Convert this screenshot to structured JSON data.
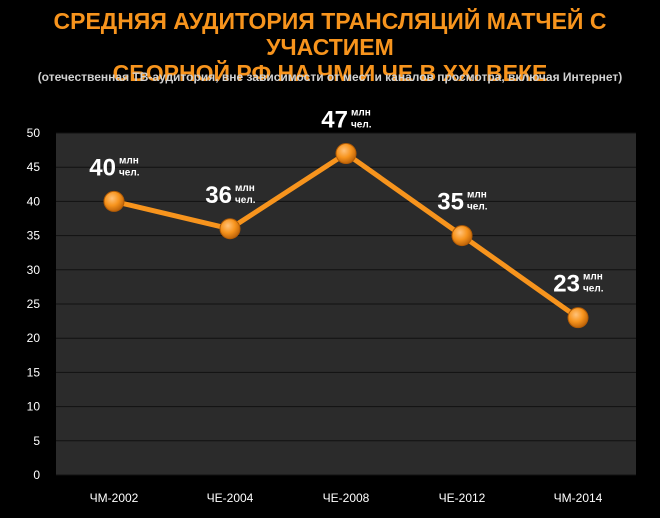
{
  "chart_data": {
    "type": "line",
    "title": "СРЕДНЯЯ АУДИТОРИЯ ТРАНСЛЯЦИЙ МАТЧЕЙ С УЧАСТИЕМ\nСБОРНОЙ РФ НА ЧМ И ЧЕ В XXI ВЕКЕ",
    "subtitle": "(отечественная ТВ-аудитория, вне зависимости от мест и каналов просмотра, включая Интернет)",
    "categories": [
      "ЧМ-2002",
      "ЧЕ-2004",
      "ЧЕ-2008",
      "ЧЕ-2012",
      "ЧМ-2014"
    ],
    "series": [
      {
        "values": [
          40,
          36,
          47,
          35,
          23
        ]
      }
    ],
    "value_unit_top": "млн",
    "value_unit_bottom": "чел.",
    "ylim": [
      0,
      50
    ],
    "yticks": [
      0,
      5,
      10,
      15,
      20,
      25,
      30,
      35,
      40,
      45,
      50
    ],
    "grid": true,
    "colors": {
      "line": "#f7941d",
      "marker": "#f7941d",
      "title": "#f7941d",
      "plot_bg": "#2b2b2b",
      "grid": "#111111"
    }
  }
}
